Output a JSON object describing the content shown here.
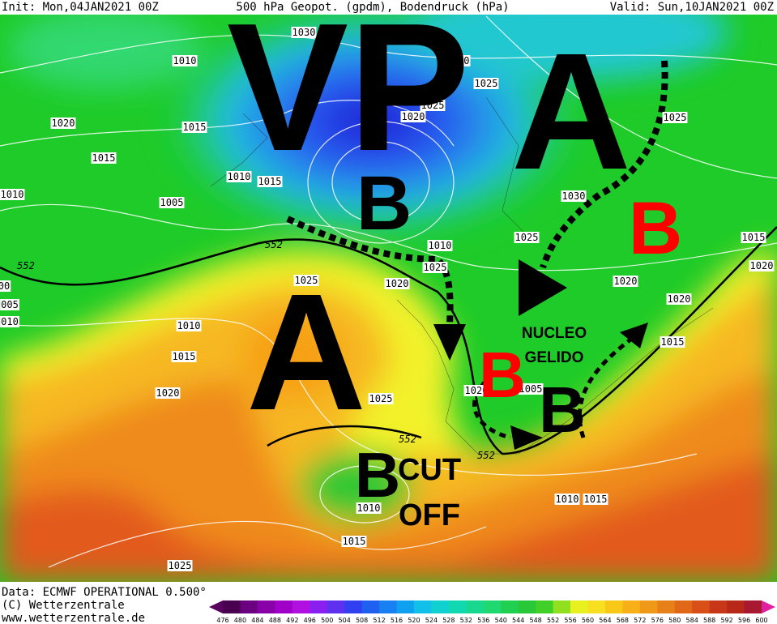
{
  "header": {
    "init": "Init: Mon,04JAN2021 00Z",
    "title": "500 hPa Geopot. (gpdm), Bodendruck (hPa)",
    "valid": "Valid: Sun,10JAN2021 00Z"
  },
  "annotations": [
    "VP",
    "A",
    "A",
    "B",
    "B",
    "B",
    "B",
    "B",
    "NUCLEO",
    "GELIDO",
    "CUT",
    "OFF"
  ],
  "isobar_labels": [
    "1030",
    "1010",
    "1020",
    "1025",
    "1025",
    "1020",
    "1020",
    "1015",
    "1025",
    "1015",
    "1010",
    "1015",
    "1010",
    "1005",
    "1030",
    "1025",
    "1010",
    "1015",
    "1025",
    "1020",
    "1020",
    "1020",
    "1025",
    "1020",
    "1010",
    "1015",
    "1015",
    "1020",
    "1025",
    "1020",
    "1005",
    "1010",
    "1015",
    "1010",
    "1015",
    "1025",
    "00",
    "005",
    "010"
  ],
  "contour_labels": [
    "552",
    "552",
    "552",
    "552"
  ],
  "footer": {
    "data": "Data: ECMWF OPERATIONAL 0.500°",
    "copyright": "(C) Wetterzentrale",
    "url": "www.wetterzentrale.de"
  },
  "colorbar": {
    "ticks": [
      476,
      480,
      484,
      488,
      492,
      496,
      500,
      504,
      508,
      512,
      516,
      520,
      524,
      528,
      532,
      536,
      540,
      544,
      548,
      552,
      556,
      560,
      564,
      568,
      572,
      576,
      580,
      584,
      588,
      592,
      596,
      600
    ]
  }
}
